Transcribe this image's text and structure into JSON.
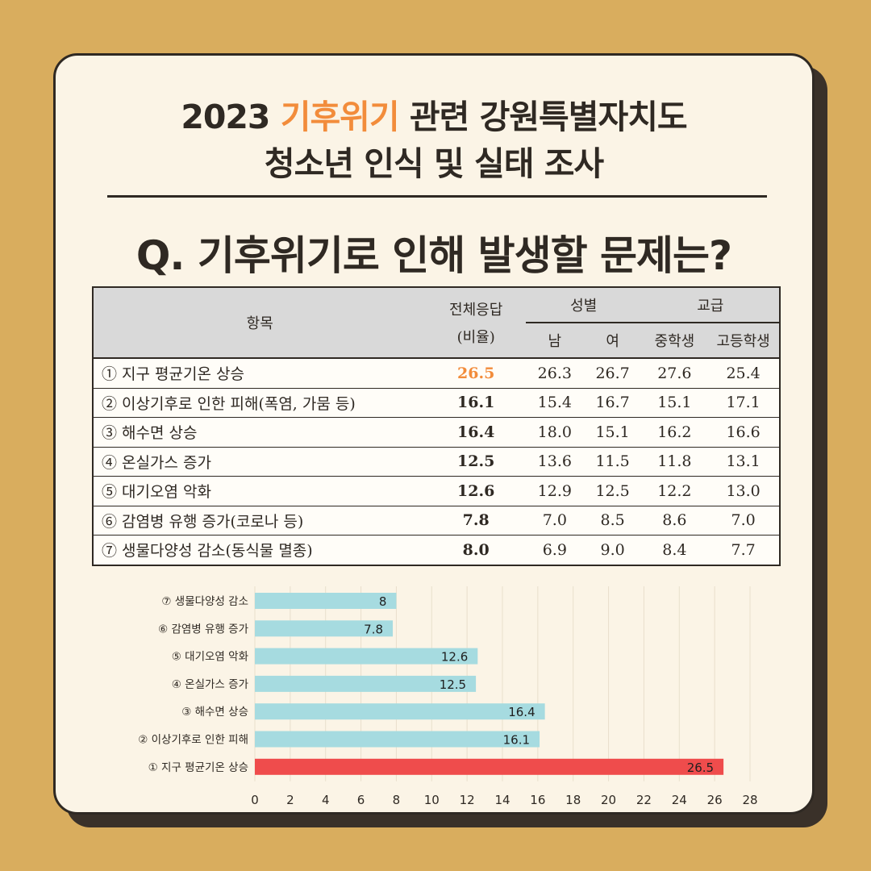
{
  "header": {
    "title_line1_pre": "2023 ",
    "title_line1_accent": "기후위기",
    "title_line1_post": " 관련 강원특별자치도",
    "title_line2": "청소년 인식 및 실태 조사",
    "question": "Q. 기후위기로 인해 발생할 문제는?"
  },
  "colors": {
    "background": "#d9ad5e",
    "card": "#fbf4e6",
    "accent": "#f28c3b",
    "bar_default": "#a6dbe0",
    "bar_highlight": "#ef4c4c"
  },
  "table": {
    "col_item": "항목",
    "col_total_line1": "전체응답",
    "col_total_line2": "(비율)",
    "group_gender": "성별",
    "group_school": "교급",
    "sub_male": "남",
    "sub_female": "여",
    "sub_middle": "중학생",
    "sub_high": "고등학생",
    "rows": [
      {
        "item": "① 지구 평균기온 상승",
        "total": "26.5",
        "male": "26.3",
        "female": "26.7",
        "middle": "27.6",
        "high": "25.4"
      },
      {
        "item": "② 이상기후로 인한 피해(폭염, 가뭄 등)",
        "total": "16.1",
        "male": "15.4",
        "female": "16.7",
        "middle": "15.1",
        "high": "17.1"
      },
      {
        "item": "③ 해수면 상승",
        "total": "16.4",
        "male": "18.0",
        "female": "15.1",
        "middle": "16.2",
        "high": "16.6"
      },
      {
        "item": "④ 온실가스 증가",
        "total": "12.5",
        "male": "13.6",
        "female": "11.5",
        "middle": "11.8",
        "high": "13.1"
      },
      {
        "item": "⑤ 대기오염 악화",
        "total": "12.6",
        "male": "12.9",
        "female": "12.5",
        "middle": "12.2",
        "high": "13.0"
      },
      {
        "item": "⑥ 감염병 유행 증가(코로나 등)",
        "total": "7.8",
        "male": "7.0",
        "female": "8.5",
        "middle": "8.6",
        "high": "7.0"
      },
      {
        "item": "⑦ 생물다양성 감소(동식물 멸종)",
        "total": "8.0",
        "male": "6.9",
        "female": "9.0",
        "middle": "8.4",
        "high": "7.7"
      }
    ]
  },
  "chart_data": {
    "type": "bar",
    "orientation": "horizontal",
    "categories": [
      "⑦ 생물다양성 감소",
      "⑥ 감염병 유행 증가",
      "⑤ 대기오염 악화",
      "④ 온실가스 증가",
      "③ 해수면 상승",
      "② 이상기후로 인한 피해",
      "① 지구 평균기온 상승"
    ],
    "values": [
      8,
      7.8,
      12.6,
      12.5,
      16.4,
      16.1,
      26.5
    ],
    "value_labels": [
      "8",
      "7.8",
      "12.6",
      "12.5",
      "16.4",
      "16.1",
      "26.5"
    ],
    "highlight_index": 6,
    "xlim": [
      0,
      28
    ],
    "xticks": [
      0,
      2,
      4,
      6,
      8,
      10,
      12,
      14,
      16,
      18,
      20,
      22,
      24,
      26,
      28
    ],
    "grid": true,
    "legend": "none"
  }
}
